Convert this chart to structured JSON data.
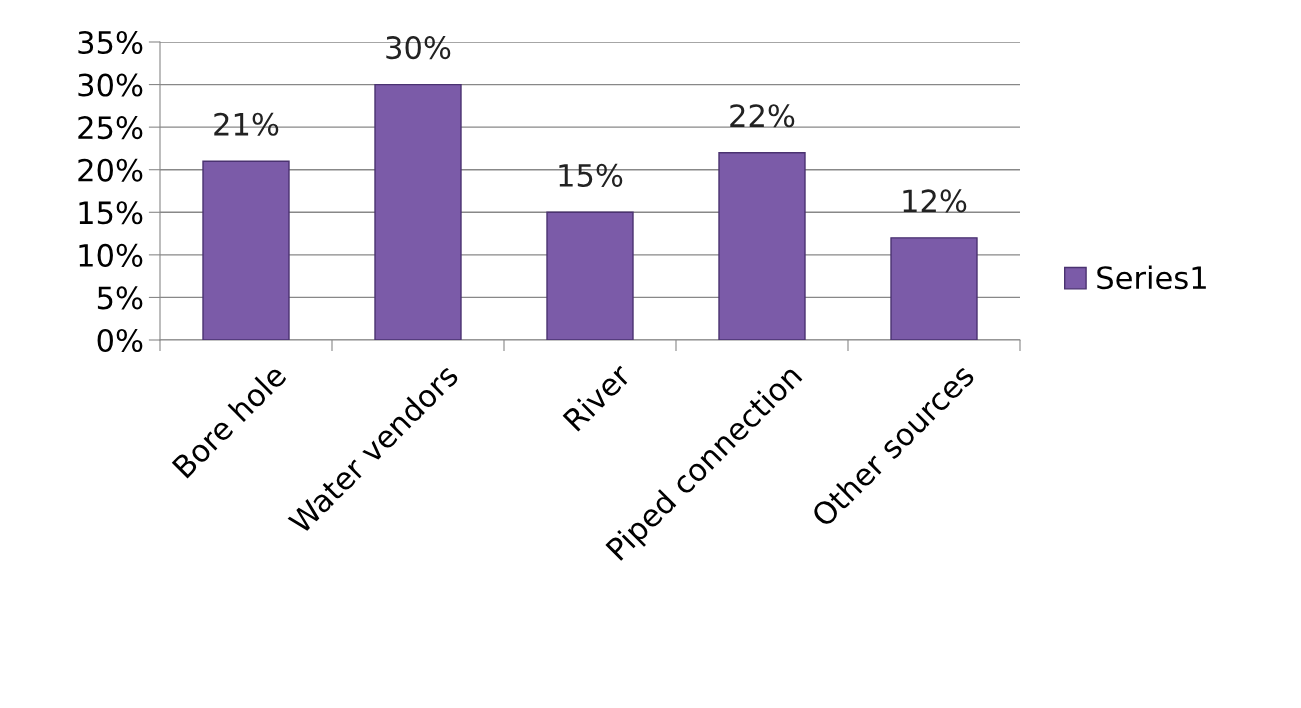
{
  "chart_data": {
    "type": "bar",
    "categories": [
      "Bore hole",
      "Water vendors",
      "River",
      "Piped connection",
      "Other sources"
    ],
    "series": [
      {
        "name": "Series1",
        "color": "#7b5ba8",
        "values": [
          21,
          30,
          15,
          22,
          12
        ],
        "value_labels": [
          "21%",
          "30%",
          "15%",
          "22%",
          "12%"
        ]
      }
    ],
    "ylim": [
      0,
      35
    ],
    "yticks": [
      {
        "value": 0,
        "label": "0%"
      },
      {
        "value": 5,
        "label": "5%"
      },
      {
        "value": 10,
        "label": "10%"
      },
      {
        "value": 15,
        "label": "15%"
      },
      {
        "value": 20,
        "label": "20%"
      },
      {
        "value": 25,
        "label": "25%"
      },
      {
        "value": 30,
        "label": "30%"
      },
      {
        "value": 35,
        "label": "35%"
      }
    ],
    "grid": "y",
    "legend": "right"
  }
}
